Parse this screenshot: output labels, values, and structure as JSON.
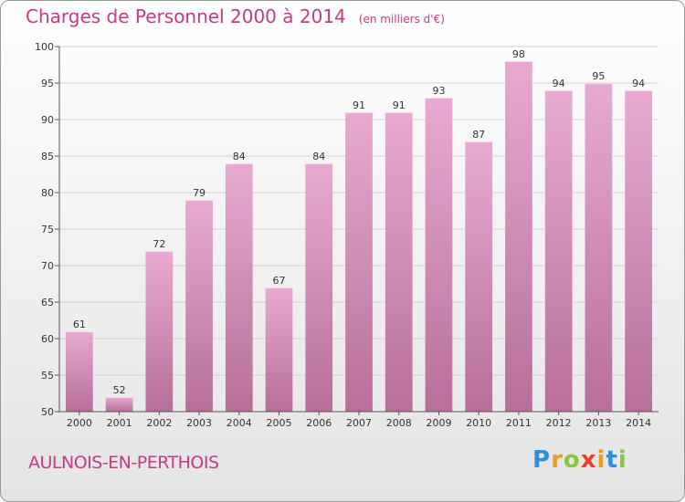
{
  "title": "Charges de Personnel 2000 à 2014",
  "unit_note": "(en milliers d'€)",
  "commune": "AULNOIS-EN-PERTHOIS",
  "logo": {
    "text": "Proxiti",
    "letters": [
      {
        "ch": "P",
        "color": "#2f8fd8"
      },
      {
        "ch": "r",
        "color": "#f39a1e"
      },
      {
        "ch": "o",
        "color": "#8cc63f"
      },
      {
        "ch": "x",
        "color": "#e8412c"
      },
      {
        "ch": "i",
        "color": "#f39a1e"
      },
      {
        "ch": "t",
        "color": "#2f8fd8"
      },
      {
        "ch": "i",
        "color": "#8cc63f"
      }
    ]
  },
  "colors": {
    "bar_top": "#e8aad2",
    "bar_bottom": "#b66f9a",
    "accent": "#c43a85"
  },
  "chart_data": {
    "type": "bar",
    "title": "Charges de Personnel 2000 à 2014",
    "subtitle": "(en milliers d'€)",
    "xlabel": "",
    "ylabel": "",
    "categories": [
      "2000",
      "2001",
      "2002",
      "2003",
      "2004",
      "2005",
      "2006",
      "2007",
      "2008",
      "2009",
      "2010",
      "2011",
      "2012",
      "2013",
      "2014"
    ],
    "values": [
      61,
      52,
      72,
      79,
      84,
      67,
      84,
      91,
      91,
      93,
      87,
      98,
      94,
      95,
      94
    ],
    "ylim": [
      50,
      100
    ],
    "yticks": [
      50,
      55,
      60,
      65,
      70,
      75,
      80,
      85,
      90,
      95,
      100
    ],
    "grid": true,
    "legend": "none"
  }
}
